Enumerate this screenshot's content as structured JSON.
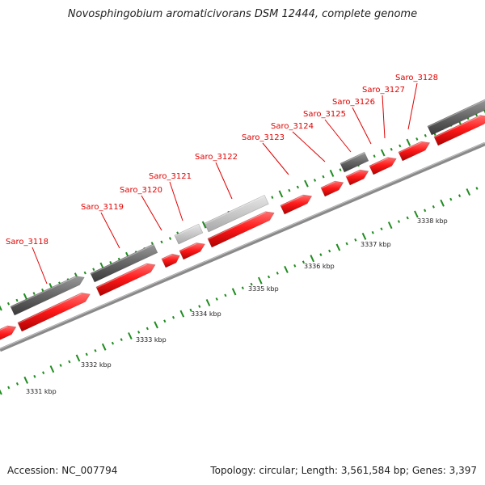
{
  "title": "Novosphingobium aromaticivorans DSM 12444, complete genome",
  "accession_text": "Accession: NC_007794",
  "summary_text": "Topology: circular; Length: 3,561,584 bp; Genes: 3,397",
  "colors": {
    "cds": "#ff1a1a",
    "feature_gray": "#666666",
    "feature_light": "#c8c8c8",
    "backbone": "#8a8a8a",
    "tick": "#1f8c1f",
    "label": "#e00000"
  },
  "gene_labels": [
    "Saro_3118",
    "Saro_3119",
    "Saro_3120",
    "Saro_3121",
    "Saro_3122",
    "Saro_3123",
    "Saro_3124",
    "Saro_3125",
    "Saro_3126",
    "Saro_3127",
    "Saro_3128"
  ],
  "kbp_labels": [
    "3331 kbp",
    "3332 kbp",
    "3333 kbp",
    "3334 kbp",
    "3335 kbp",
    "3336 kbp",
    "3337 kbp",
    "3338 kbp"
  ]
}
